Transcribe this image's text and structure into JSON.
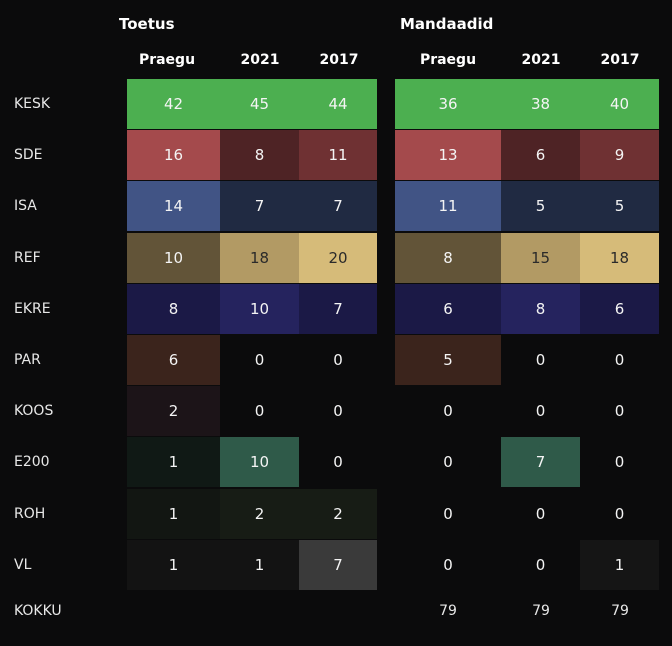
{
  "headers": {
    "group1": "Toetus",
    "group2": "Mandaadid",
    "columns": [
      "Praegu",
      "2021",
      "2017"
    ]
  },
  "rows": [
    {
      "party": "KESK",
      "toetus": [
        "42",
        "45",
        "44"
      ],
      "mandaadid": [
        "36",
        "38",
        "40"
      ],
      "toetus_colors": [
        "#4caf50",
        "#4caf50",
        "#4caf50"
      ],
      "mandaadid_colors": [
        "#4caf50",
        "#4caf50",
        "#4caf50"
      ]
    },
    {
      "party": "SDE",
      "toetus": [
        "16",
        "8",
        "11"
      ],
      "mandaadid": [
        "13",
        "6",
        "9"
      ],
      "toetus_colors": [
        "#a44a4c",
        "#4e2325",
        "#6f3133"
      ],
      "mandaadid_colors": [
        "#a44a4c",
        "#4e2325",
        "#6f3133"
      ]
    },
    {
      "party": "ISA",
      "toetus": [
        "14",
        "7",
        "7"
      ],
      "mandaadid": [
        "11",
        "5",
        "5"
      ],
      "toetus_colors": [
        "#415485",
        "#202a42",
        "#202a42"
      ],
      "mandaadid_colors": [
        "#415485",
        "#202a42",
        "#202a42"
      ]
    },
    {
      "party": "REF",
      "toetus": [
        "10",
        "18",
        "20"
      ],
      "mandaadid": [
        "8",
        "15",
        "18"
      ],
      "toetus_colors": [
        "#625438",
        "#b29a64",
        "#d6bb79"
      ],
      "mandaadid_colors": [
        "#625438",
        "#b29a64",
        "#d6bb79"
      ],
      "dark_text": [
        false,
        true,
        true
      ]
    },
    {
      "party": "EKRE",
      "toetus": [
        "8",
        "10",
        "7"
      ],
      "mandaadid": [
        "6",
        "8",
        "6"
      ],
      "toetus_colors": [
        "#1b1946",
        "#25235e",
        "#1b1946"
      ],
      "mandaadid_colors": [
        "#1b1946",
        "#25235e",
        "#1b1946"
      ]
    },
    {
      "party": "PAR",
      "toetus": [
        "6",
        "0",
        "0"
      ],
      "mandaadid": [
        "5",
        "0",
        "0"
      ],
      "toetus_colors": [
        "#3b241c",
        "#0b0b0c",
        "#0b0b0c"
      ],
      "mandaadid_colors": [
        "#3b241c",
        "#0b0b0c",
        "#0b0b0c"
      ]
    },
    {
      "party": "KOOS",
      "toetus": [
        "2",
        "0",
        "0"
      ],
      "mandaadid": [
        "0",
        "0",
        "0"
      ],
      "toetus_colors": [
        "#1c1418",
        "#0b0b0c",
        "#0b0b0c"
      ],
      "mandaadid_colors": [
        "#0b0b0c",
        "#0b0b0c",
        "#0b0b0c"
      ]
    },
    {
      "party": "E200",
      "toetus": [
        "1",
        "10",
        "0"
      ],
      "mandaadid": [
        "0",
        "7",
        "0"
      ],
      "toetus_colors": [
        "#101915",
        "#2f5a49",
        "#0b0b0c"
      ],
      "mandaadid_colors": [
        "#0b0b0c",
        "#2f5a49",
        "#0b0b0c"
      ]
    },
    {
      "party": "ROH",
      "toetus": [
        "1",
        "2",
        "2"
      ],
      "mandaadid": [
        "0",
        "0",
        "0"
      ],
      "toetus_colors": [
        "#121612",
        "#171c15",
        "#171c15"
      ],
      "mandaadid_colors": [
        "#0b0b0c",
        "#0b0b0c",
        "#0b0b0c"
      ]
    },
    {
      "party": "VL",
      "toetus": [
        "1",
        "1",
        "7"
      ],
      "mandaadid": [
        "0",
        "0",
        "1"
      ],
      "toetus_colors": [
        "#131313",
        "#131313",
        "#3a3a3a"
      ],
      "mandaadid_colors": [
        "#0b0b0c",
        "#0b0b0c",
        "#151515"
      ]
    }
  ],
  "total": {
    "label": "KOKKU",
    "mandaadid": [
      "79",
      "79",
      "79"
    ]
  }
}
